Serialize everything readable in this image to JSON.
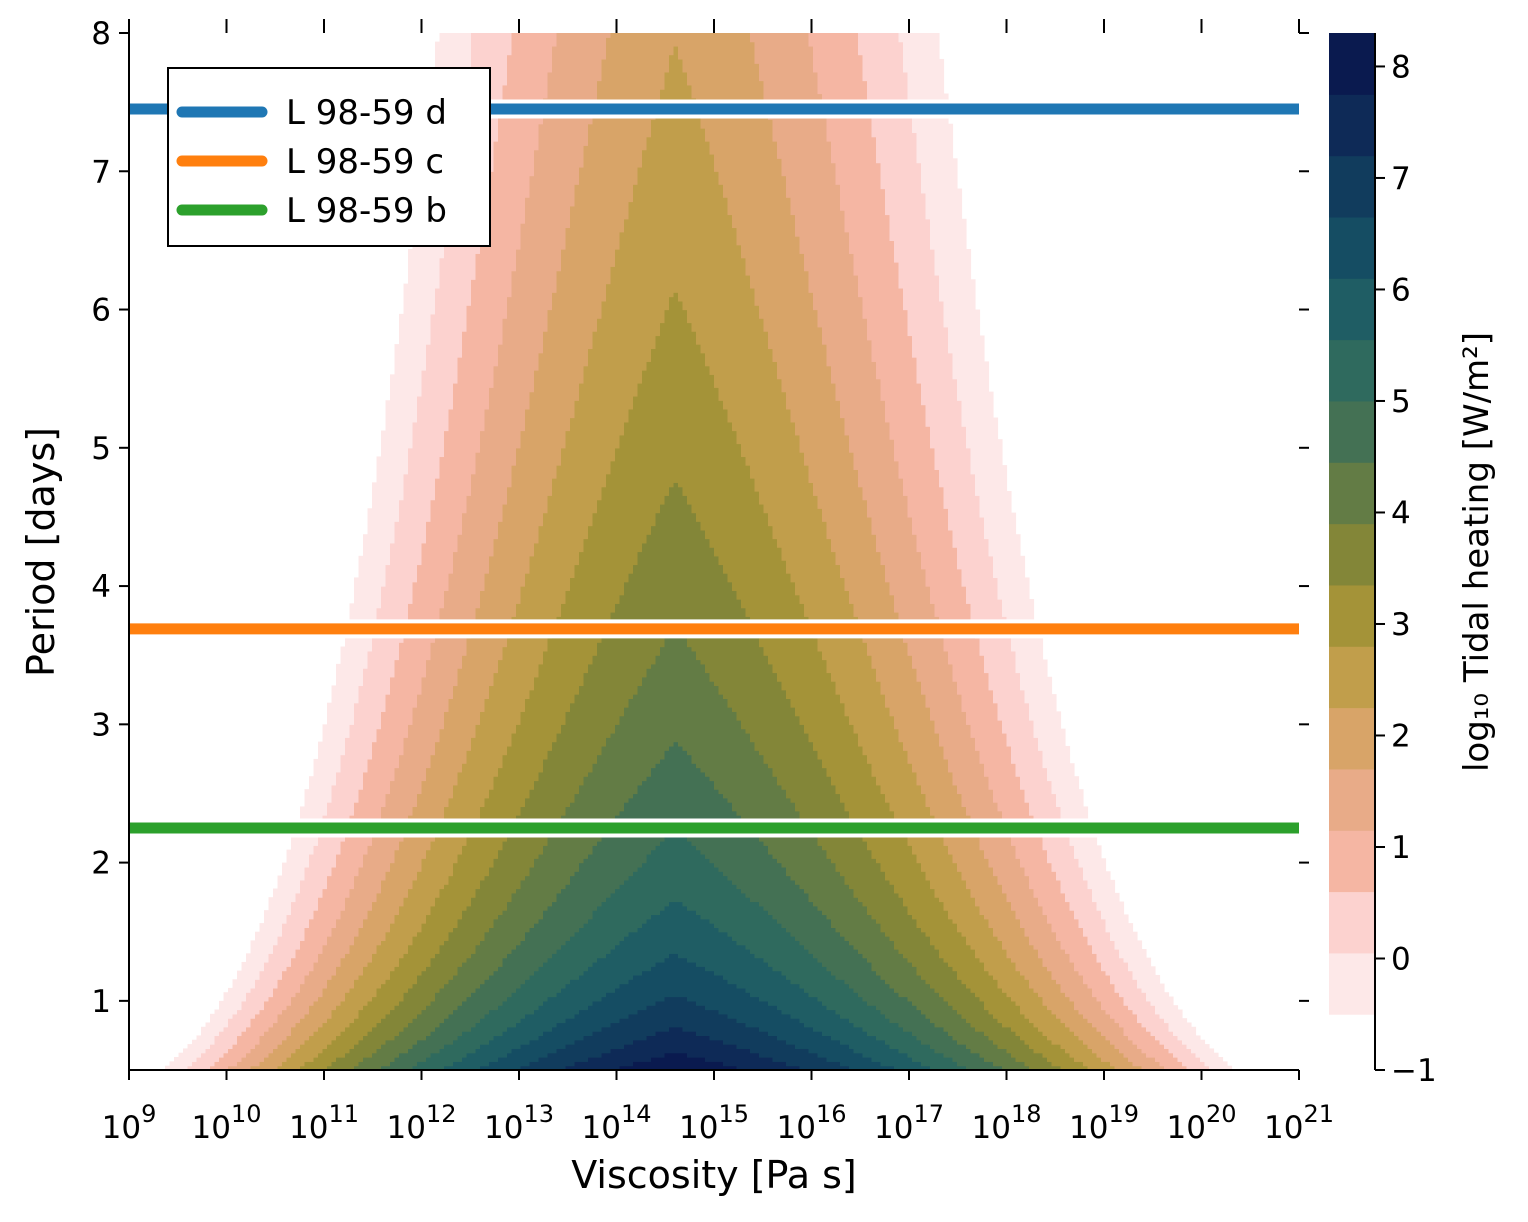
{
  "chart_data": {
    "type": "heatmap",
    "title": "",
    "xlabel": "Viscosity [Pa s]",
    "ylabel": "Period [days]",
    "x_scale": "log",
    "xlim": [
      1000000000.0,
      1e+21
    ],
    "ylim": [
      0.5,
      8
    ],
    "x_ticks": [
      {
        "base": "10",
        "exp": "9"
      },
      {
        "base": "10",
        "exp": "10"
      },
      {
        "base": "10",
        "exp": "11"
      },
      {
        "base": "10",
        "exp": "12"
      },
      {
        "base": "10",
        "exp": "13"
      },
      {
        "base": "10",
        "exp": "14"
      },
      {
        "base": "10",
        "exp": "15"
      },
      {
        "base": "10",
        "exp": "16"
      },
      {
        "base": "10",
        "exp": "17"
      },
      {
        "base": "10",
        "exp": "18"
      },
      {
        "base": "10",
        "exp": "19"
      },
      {
        "base": "10",
        "exp": "20"
      },
      {
        "base": "10",
        "exp": "21"
      }
    ],
    "y_ticks": [
      "1",
      "2",
      "3",
      "4",
      "5",
      "6",
      "7",
      "8"
    ],
    "colorbar": {
      "label": "log₁₀ Tidal heating [W/m²]",
      "range": [
        -1,
        8.3
      ],
      "level_min": -0.5,
      "level_step": 0.55,
      "tick_values": [
        -1,
        0,
        1,
        2,
        3,
        4,
        5,
        6,
        7,
        8
      ],
      "tick_labels": [
        "−1",
        "0",
        "1",
        "2",
        "3",
        "4",
        "5",
        "6",
        "7",
        "8"
      ],
      "colors": [
        "#fde8e8",
        "#fcd2cf",
        "#f5b6a3",
        "#e8ab88",
        "#d8a468",
        "#c19e4b",
        "#a49338",
        "#838638",
        "#637c45",
        "#447154",
        "#2f6a5e",
        "#1f5d64",
        "#154d63",
        "#113c5d",
        "#0e2a57",
        "#0a1a4f"
      ]
    },
    "heating_peak": {
      "log10_viscosity": 14.6,
      "value_at_period_0_5": 8.25
    },
    "series": [
      {
        "name": "L 98-59 d",
        "period": 7.45,
        "color": "#1f77b4"
      },
      {
        "name": "L 98-59 c",
        "period": 3.69,
        "color": "#ff7f0e"
      },
      {
        "name": "L 98-59 b",
        "period": 2.25,
        "color": "#2ca02c"
      }
    ],
    "legend_position": "upper-left",
    "grid": false
  }
}
